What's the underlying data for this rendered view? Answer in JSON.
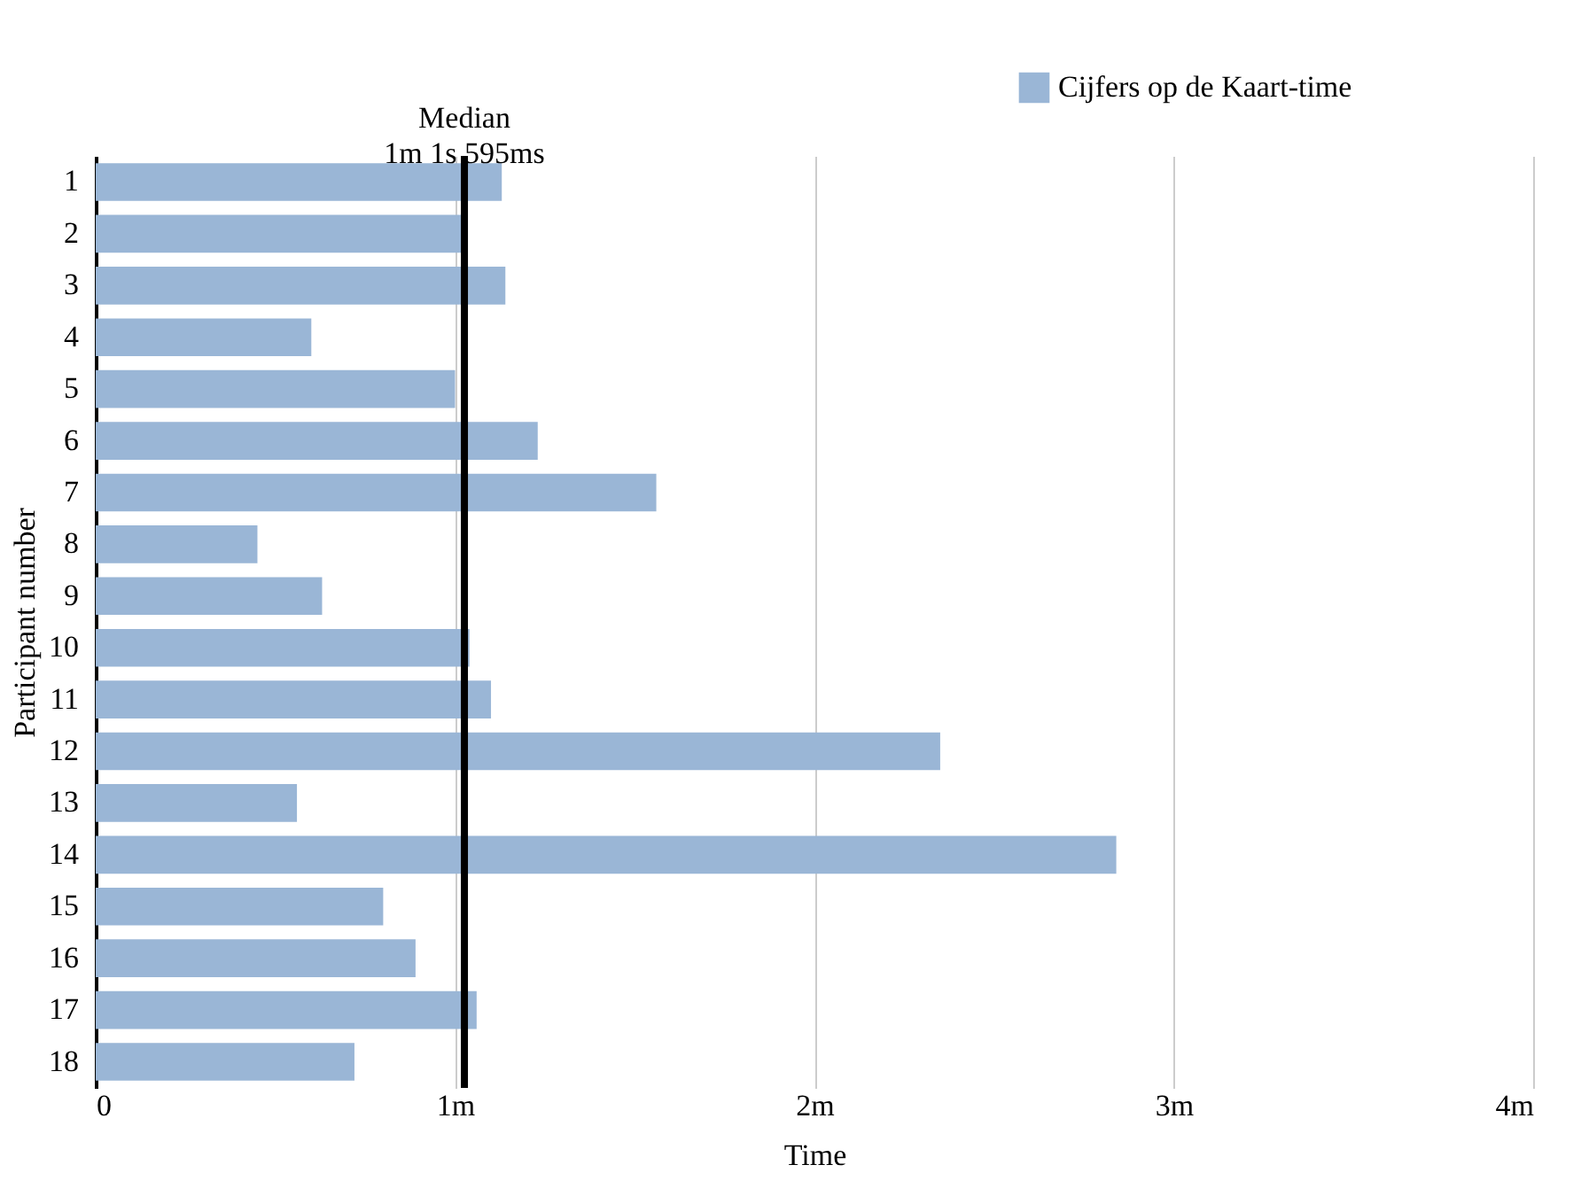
{
  "chart_data": {
    "type": "bar",
    "orientation": "horizontal",
    "xlabel": "Time",
    "ylabel": "Participant number",
    "legend": "top right",
    "grid": "x",
    "categories": [
      "1",
      "2",
      "3",
      "4",
      "5",
      "6",
      "7",
      "8",
      "9",
      "10",
      "11",
      "12",
      "13",
      "14",
      "15",
      "16",
      "17",
      "18"
    ],
    "series": [
      {
        "name": "Cijfers op de Kaart-time",
        "color": "#9ab6d6",
        "values": [
          1.13,
          1.02,
          1.14,
          0.6,
          1.0,
          1.23,
          1.56,
          0.45,
          0.63,
          1.04,
          1.1,
          2.35,
          0.56,
          2.84,
          0.8,
          0.89,
          1.06,
          0.72
        ]
      }
    ],
    "xlim": [
      0,
      4
    ],
    "xticks": [
      0,
      {
        "value": 1,
        "label": "1m"
      },
      {
        "value": 2,
        "label": "2m"
      },
      {
        "value": 3,
        "label": "3m"
      },
      {
        "value": 4,
        "label": "4m"
      }
    ],
    "ref_lines": [
      {
        "axis": "x",
        "value": 1.026,
        "label": "Median\n1m 1s 595ms",
        "color": "#000000"
      }
    ]
  }
}
